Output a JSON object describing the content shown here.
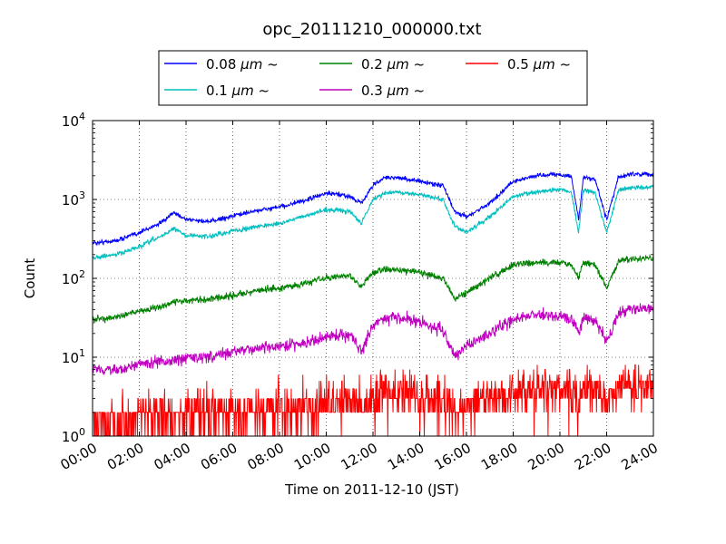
{
  "chart_data": {
    "type": "line",
    "title": "opc_20111210_000000.txt",
    "xlabel": "Time on 2011-12-10 (JST)",
    "ylabel": "Count",
    "x_unit": "hours",
    "xlim": [
      0,
      24
    ],
    "ylim": [
      1,
      10000
    ],
    "yscale": "log",
    "grid": true,
    "legend_position": "top-center",
    "x_ticks": [
      "00:00",
      "02:00",
      "04:00",
      "06:00",
      "08:00",
      "10:00",
      "12:00",
      "14:00",
      "16:00",
      "18:00",
      "20:00",
      "22:00",
      "24:00"
    ],
    "y_ticks": [
      {
        "base": "10",
        "exp": "0",
        "value": 1
      },
      {
        "base": "10",
        "exp": "1",
        "value": 10
      },
      {
        "base": "10",
        "exp": "2",
        "value": 100
      },
      {
        "base": "10",
        "exp": "3",
        "value": 1000
      },
      {
        "base": "10",
        "exp": "4",
        "value": 10000
      }
    ],
    "x": [
      0,
      1,
      2,
      3,
      3.5,
      4,
      5,
      6,
      7,
      8,
      9,
      10,
      11,
      11.5,
      12,
      12.5,
      13,
      14,
      15,
      15.5,
      16,
      17,
      18,
      19,
      20,
      20.5,
      20.8,
      21,
      21.5,
      22,
      22.5,
      23,
      24
    ],
    "series": [
      {
        "name": "0.08 μm ~",
        "label_prefix": "0.08",
        "label_unit": "μm ~",
        "color": "#0000ff",
        "values": [
          280,
          300,
          380,
          520,
          680,
          560,
          520,
          620,
          720,
          800,
          950,
          1200,
          1100,
          900,
          1500,
          1900,
          1900,
          1700,
          1500,
          700,
          600,
          900,
          1700,
          2000,
          2100,
          1900,
          550,
          1900,
          1800,
          550,
          1900,
          2100,
          2100
        ]
      },
      {
        "name": "0.1 μm ~",
        "label_prefix": "0.1",
        "label_unit": "μm ~",
        "color": "#00bfbf",
        "values": [
          180,
          200,
          250,
          350,
          430,
          350,
          340,
          400,
          450,
          500,
          600,
          750,
          700,
          500,
          1000,
          1200,
          1250,
          1150,
          1000,
          450,
          380,
          600,
          1100,
          1250,
          1350,
          1200,
          380,
          1300,
          1250,
          380,
          1300,
          1400,
          1450
        ]
      },
      {
        "name": "0.2 μm ~",
        "label_prefix": "0.2",
        "label_unit": "μm ~",
        "color": "#008000",
        "values": [
          30,
          32,
          38,
          45,
          50,
          52,
          55,
          60,
          70,
          75,
          85,
          100,
          110,
          80,
          120,
          130,
          130,
          120,
          100,
          55,
          65,
          100,
          150,
          160,
          160,
          150,
          100,
          160,
          150,
          75,
          160,
          175,
          180
        ]
      },
      {
        "name": "0.3 μm ~",
        "label_prefix": "0.3",
        "label_unit": "μm ~",
        "color": "#bf00bf",
        "values": [
          7,
          7,
          8,
          9,
          9,
          10,
          10,
          12,
          13,
          14,
          15,
          18,
          20,
          12,
          25,
          32,
          32,
          28,
          22,
          10,
          14,
          20,
          30,
          35,
          33,
          30,
          20,
          32,
          30,
          16,
          35,
          40,
          42
        ]
      },
      {
        "name": "0.5 μm ~",
        "label_prefix": "0.5",
        "label_unit": "μm ~",
        "color": "#ff0000",
        "values": [
          1.5,
          1.5,
          1.7,
          1.8,
          1.8,
          2,
          2,
          2,
          2,
          2.2,
          2.3,
          2.5,
          2.5,
          2.2,
          3,
          3.5,
          3.5,
          3.2,
          3,
          2,
          2.2,
          3,
          3.5,
          4,
          4,
          3.5,
          2.5,
          4,
          3.5,
          2.5,
          4,
          4.5,
          4.5
        ]
      }
    ]
  }
}
